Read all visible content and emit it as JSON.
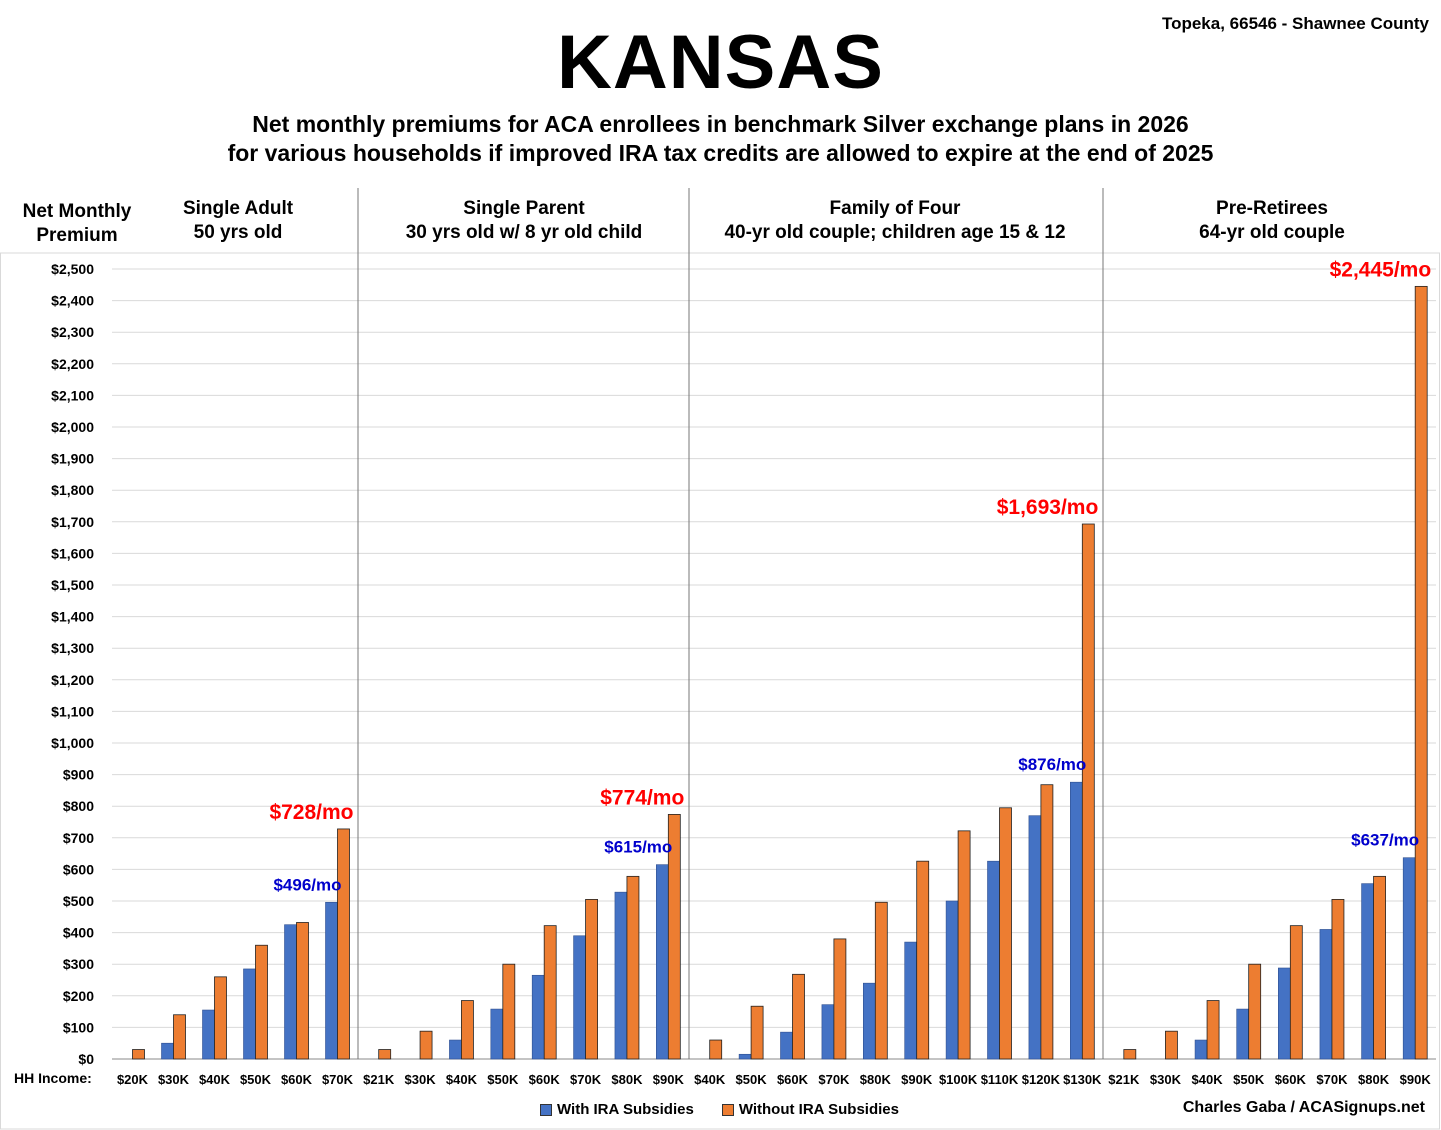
{
  "header": {
    "title": "KANSAS",
    "location": "Topeka, 66546 - Shawnee County",
    "subtitle_line1": "Net monthly premiums for ACA enrollees in benchmark Silver exchange plans in 2026",
    "subtitle_line2": "for various households if improved IRA tax credits are allowed to expire at the end of 2025"
  },
  "footer": {
    "x_axis_prefix": "HH Income:",
    "credit": "Charles Gaba / ACASignups.net"
  },
  "colors": {
    "with": "#4472C4",
    "without": "#ED7D31",
    "annotation_red": "#FF0000",
    "annotation_blue": "#0000CC"
  },
  "chart_data": {
    "type": "bar",
    "ylabel": "Net Monthly Premium",
    "ylim": [
      0,
      2500
    ],
    "ytick_step": 100,
    "grid": true,
    "legend_position": "bottom-center",
    "series_names": [
      "With IRA Subsidies",
      "Without IRA Subsidies"
    ],
    "groups": [
      {
        "title_line1": "Single Adult",
        "title_line2": "50 yrs old",
        "categories": [
          "$20K",
          "$30K",
          "$40K",
          "$50K",
          "$60K",
          "$70K"
        ],
        "with": [
          0,
          50,
          155,
          285,
          425,
          496
        ],
        "without": [
          30,
          140,
          260,
          360,
          432,
          728
        ],
        "annotations": [
          {
            "text": "$728/mo",
            "series": "without",
            "index": 5,
            "color": "red"
          },
          {
            "text": "$496/mo",
            "series": "with",
            "index": 5,
            "color": "blue"
          }
        ]
      },
      {
        "title_line1": "Single Parent",
        "title_line2": "30 yrs old w/ 8 yr old child",
        "categories": [
          "$21K",
          "$30K",
          "$40K",
          "$50K",
          "$60K",
          "$70K",
          "$80K",
          "$90K"
        ],
        "with": [
          0,
          0,
          60,
          158,
          265,
          390,
          528,
          615
        ],
        "without": [
          30,
          88,
          185,
          300,
          422,
          505,
          578,
          774
        ],
        "annotations": [
          {
            "text": "$774/mo",
            "series": "without",
            "index": 7,
            "color": "red"
          },
          {
            "text": "$615/mo",
            "series": "with",
            "index": 7,
            "color": "blue"
          }
        ]
      },
      {
        "title_line1": "Family of Four",
        "title_line2": "40-yr old couple; children age 15 & 12",
        "categories": [
          "$40K",
          "$50K",
          "$60K",
          "$70K",
          "$80K",
          "$90K",
          "$100K",
          "$110K",
          "$120K",
          "$130K"
        ],
        "with": [
          0,
          15,
          85,
          172,
          240,
          370,
          500,
          626,
          770,
          876
        ],
        "without": [
          60,
          167,
          268,
          380,
          496,
          626,
          722,
          795,
          868,
          1693
        ],
        "annotations": [
          {
            "text": "$1,693/mo",
            "series": "without",
            "index": 9,
            "color": "red"
          },
          {
            "text": "$876/mo",
            "series": "with",
            "index": 9,
            "color": "blue"
          }
        ]
      },
      {
        "title_line1": "Pre-Retirees",
        "title_line2": "64-yr old couple",
        "categories": [
          "$21K",
          "$30K",
          "$40K",
          "$50K",
          "$60K",
          "$70K",
          "$80K",
          "$90K"
        ],
        "with": [
          0,
          0,
          60,
          158,
          288,
          410,
          555,
          637
        ],
        "without": [
          30,
          88,
          185,
          300,
          422,
          505,
          578,
          2445
        ],
        "annotations": [
          {
            "text": "$2,445/mo",
            "series": "without",
            "index": 7,
            "color": "red"
          },
          {
            "text": "$637/mo",
            "series": "with",
            "index": 7,
            "color": "blue"
          }
        ]
      }
    ]
  }
}
